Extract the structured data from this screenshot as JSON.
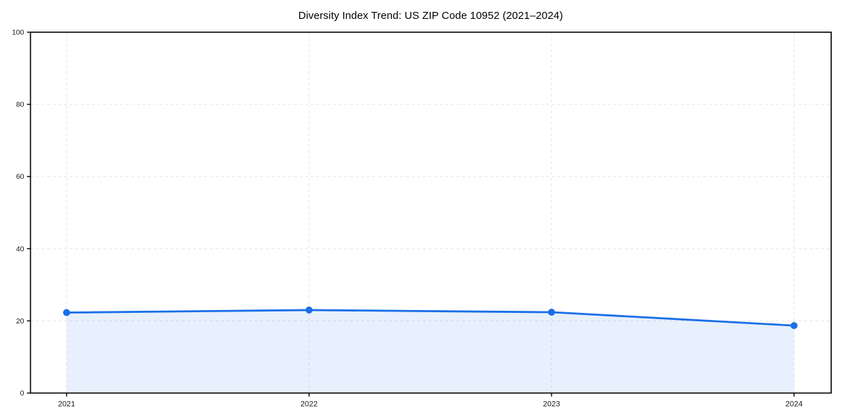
{
  "page": {
    "background": "#ffffff"
  },
  "chart_data": {
    "type": "area",
    "title": "Diversity Index Trend: US ZIP Code 10952 (2021–2024)",
    "categories": [
      "2021",
      "2022",
      "2023",
      "2024"
    ],
    "series": [
      {
        "name": "Diversity Index",
        "values": [
          22.3,
          23.0,
          22.4,
          18.7
        ]
      }
    ],
    "xlabel": "",
    "ylabel": "",
    "ylim": [
      0,
      100
    ],
    "yticks": [
      0,
      20,
      40,
      60,
      80,
      100
    ],
    "grid": "dashed-both-axes",
    "legend": "none",
    "markers": "filled-circle",
    "colors": {
      "line": "#1a6fe8",
      "marker": "#1a6fe8",
      "fill": "rgba(26, 111, 232, 0.10)",
      "gridline": "#e3e3e3",
      "spine": "#000000",
      "tick_label": "#1a1a1a",
      "title": "#000000",
      "background": "#ffffff"
    }
  }
}
